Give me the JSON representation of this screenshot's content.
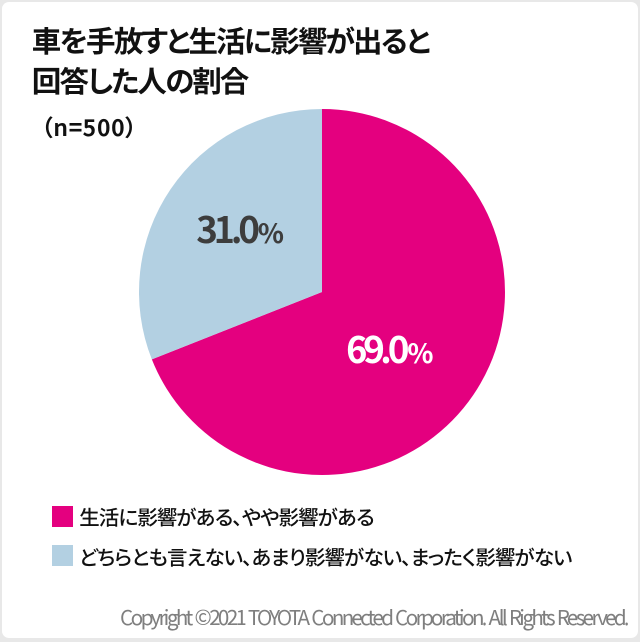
{
  "header": {
    "title_lines": [
      "車を手放すと生活に影響が出ると",
      "回答した人の割合"
    ],
    "sample_label": "（n=500）"
  },
  "chart_data": {
    "type": "pie",
    "title": "車を手放すと生活に影響が出ると回答した人の割合",
    "sample_size": "n=500",
    "start_angle_deg": 0,
    "direction": "clockwise",
    "unit": "%",
    "slices": [
      {
        "label": "生活に影響がある、やや影響がある",
        "value": 69.0,
        "display": "69.0",
        "unit": "%",
        "color": "#e4007f",
        "label_color": "#ffffff"
      },
      {
        "label": "どちらとも言えない、あまり影響がない、まったく影響がない",
        "value": 31.0,
        "display": "31.0",
        "unit": "%",
        "color": "#b3d0e2",
        "label_color": "#3d3d3d"
      }
    ],
    "legend_position": "bottom-left"
  },
  "footer": {
    "copyright": "Copyright ©2021 TOYOTA Connected Corporation. All Rights Reserved."
  }
}
